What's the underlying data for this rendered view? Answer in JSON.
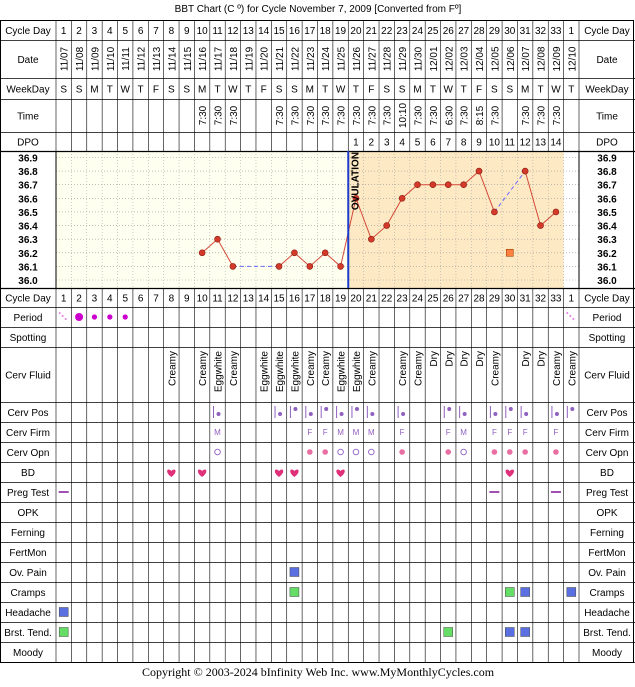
{
  "title": "BBT Chart (C º) for Cycle November 7, 2009  [Converted from Fº]",
  "footer": "Copyright © 2003-2024 bInfinity Web Inc.    www.MyMonthlyCycles.com",
  "ovulation_label": "OVULATION",
  "colors": {
    "grid": "#000000",
    "chart_bg": "#fffff0",
    "post_ovulation_bg": "#fde9c4",
    "line": "#d44a3a",
    "point": "#d43a2a",
    "ovulation_line": "#1c3ccc",
    "dashed": "#6a6aff",
    "period": "#cc00cc",
    "period_light": "#e87ae8",
    "cervix": "#9060c0",
    "bd_heart": "#e0307a",
    "cramps": "#66dd66",
    "headache": "#5a70e0",
    "pain": "#5a70e0",
    "preg_test": "#a050b0",
    "orange_box": "#ff8040"
  },
  "row_labels": {
    "cycle_day": "Cycle Day",
    "date": "Date",
    "weekday": "WeekDay",
    "time": "Time",
    "dpo": "DPO",
    "period": "Period",
    "spotting": "Spotting",
    "cerv_fluid": "Cerv Fluid",
    "cerv_pos": "Cerv Pos",
    "cerv_firm": "Cerv Firm",
    "cerv_opn": "Cerv Opn",
    "bd": "BD",
    "preg_test": "Preg Test",
    "opk": "OPK",
    "ferning": "Ferning",
    "fertmon": "FertMon",
    "ov_pain": "Ov. Pain",
    "cramps": "Cramps",
    "headache": "Headache",
    "brst_tend": "Brst. Tend.",
    "moody": "Moody"
  },
  "cycle_days": [
    "1",
    "2",
    "3",
    "4",
    "5",
    "6",
    "7",
    "8",
    "9",
    "10",
    "11",
    "12",
    "13",
    "14",
    "15",
    "16",
    "17",
    "18",
    "19",
    "20",
    "21",
    "22",
    "23",
    "24",
    "25",
    "26",
    "27",
    "28",
    "29",
    "30",
    "31",
    "32",
    "33",
    "1"
  ],
  "dates": [
    "11/07",
    "11/08",
    "11/09",
    "11/10",
    "11/11",
    "11/12",
    "11/13",
    "11/14",
    "11/15",
    "11/16",
    "11/17",
    "11/18",
    "11/19",
    "11/20",
    "11/21",
    "11/22",
    "11/23",
    "11/24",
    "11/25",
    "11/26",
    "11/27",
    "11/28",
    "11/29",
    "11/30",
    "12/01",
    "12/02",
    "12/03",
    "12/04",
    "12/05",
    "12/06",
    "12/07",
    "12/08",
    "12/09",
    "12/10"
  ],
  "weekdays": [
    "S",
    "S",
    "M",
    "T",
    "W",
    "T",
    "F",
    "S",
    "S",
    "M",
    "T",
    "W",
    "T",
    "F",
    "S",
    "S",
    "M",
    "T",
    "W",
    "T",
    "F",
    "S",
    "S",
    "M",
    "T",
    "W",
    "T",
    "F",
    "S",
    "S",
    "M",
    "T",
    "W",
    "T"
  ],
  "times": [
    "",
    "",
    "",
    "",
    "",
    "",
    "",
    "",
    "",
    "7:30",
    "7:30",
    "7:30",
    "",
    "",
    "7:30",
    "7:30",
    "7:30",
    "7:30",
    "7:30",
    "7:30",
    "7:30",
    "7:30",
    "10:10",
    "7:30",
    "7:30",
    "6:30",
    "7:30",
    "8:15",
    "7:30",
    "",
    "7:30",
    "7:30",
    "7:30",
    ""
  ],
  "dpo": [
    "",
    "",
    "",
    "",
    "",
    "",
    "",
    "",
    "",
    "",
    "",
    "",
    "",
    "",
    "",
    "",
    "",
    "",
    "",
    "1",
    "2",
    "3",
    "4",
    "5",
    "6",
    "7",
    "8",
    "9",
    "10",
    "11",
    "12",
    "13",
    "14",
    ""
  ],
  "cerv_fluid": [
    "",
    "",
    "",
    "",
    "",
    "",
    "",
    "Creamy",
    "",
    "Creamy",
    "Eggwhite",
    "Creamy",
    "",
    "Eggwhite",
    "Eggwhite",
    "Eggwhite",
    "Creamy",
    "Creamy",
    "Eggwhite",
    "Eggwhite",
    "Creamy",
    "",
    "Creamy",
    "Creamy",
    "Dry",
    "Dry",
    "Dry",
    "Dry",
    "Creamy",
    "",
    "Dry",
    "Dry",
    "Creamy",
    "Creamy"
  ],
  "cerv_firm": [
    "",
    "",
    "",
    "",
    "",
    "",
    "",
    "",
    "",
    "",
    "M",
    "",
    "",
    "",
    "",
    "",
    "F",
    "F",
    "M",
    "M",
    "M",
    "",
    "F",
    "",
    "",
    "F",
    "M",
    "",
    "F",
    "F",
    "F",
    "",
    "F",
    ""
  ],
  "period": [
    "spot",
    "heavy",
    "medium",
    "medium",
    "medium",
    "",
    "",
    "",
    "",
    "",
    "",
    "",
    "",
    "",
    "",
    "",
    "",
    "",
    "",
    "",
    "",
    "",
    "",
    "",
    "",
    "",
    "",
    "",
    "",
    "",
    "",
    "",
    "",
    "spot"
  ],
  "cerv_opn": [
    "",
    "",
    "",
    "",
    "",
    "",
    "",
    "",
    "",
    "",
    "open",
    "",
    "",
    "",
    "",
    "",
    "closed",
    "closed",
    "open",
    "open",
    "open",
    "",
    "closed",
    "",
    "",
    "closed",
    "open",
    "",
    "closed",
    "closed",
    "closed",
    "",
    "closed",
    ""
  ],
  "bd_days": [
    8,
    10,
    15,
    16,
    19,
    30
  ],
  "preg_test_days": [
    1,
    29,
    33
  ],
  "ov_pain_days": [
    16
  ],
  "cramps_days": [
    16,
    30,
    31,
    34
  ],
  "headache_days": [
    1
  ],
  "brst_tend_days": [
    1,
    26,
    30,
    31
  ],
  "cerv_pos_days": [
    11,
    15,
    16,
    17,
    18,
    19,
    20,
    21,
    23,
    26,
    27,
    29,
    30,
    31,
    33,
    34
  ],
  "ovulation_day": 19,
  "chart_data": {
    "type": "line",
    "title": "BBT Chart (C º) for Cycle November 7, 2009  [Converted from Fº]",
    "x_label": "Cycle Day",
    "y_label": "",
    "ylim": [
      36.0,
      36.9
    ],
    "y_ticks": [
      "36.9",
      "36.8",
      "36.7",
      "36.6",
      "36.5",
      "36.4",
      "36.3",
      "36.2",
      "36.1",
      "36.0"
    ],
    "series": [
      {
        "values": [
          null,
          null,
          null,
          null,
          null,
          null,
          null,
          null,
          null,
          36.2,
          36.3,
          36.1,
          null,
          null,
          36.1,
          36.2,
          36.1,
          36.2,
          36.1,
          36.6,
          36.3,
          36.4,
          36.6,
          36.7,
          36.7,
          36.7,
          36.7,
          36.8,
          36.5,
          null,
          36.8,
          36.4,
          36.5,
          null
        ]
      }
    ],
    "unplotted_values": [
      {
        "day": 30,
        "value": 36.2
      }
    ],
    "dashed_links": [
      [
        12,
        15
      ],
      [
        29,
        31
      ]
    ],
    "ovulation_day": 19
  }
}
